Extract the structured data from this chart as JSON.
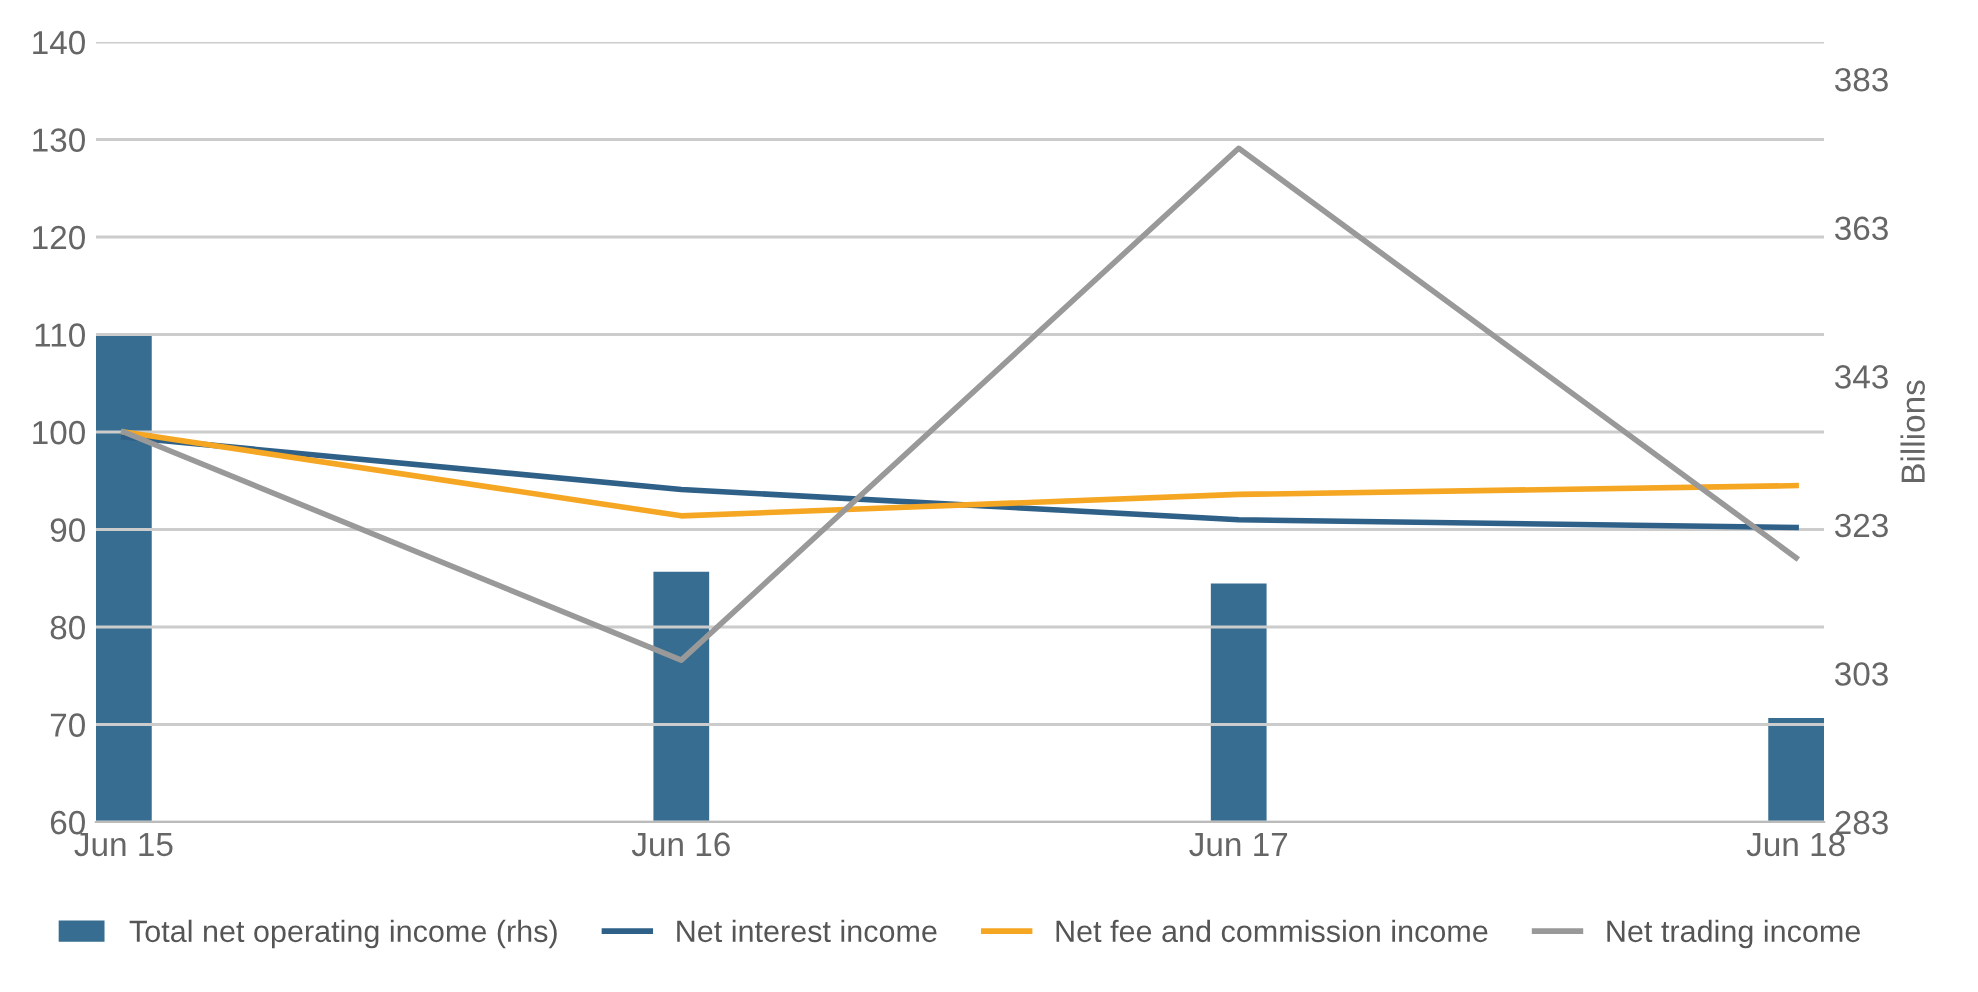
{
  "chart_data": {
    "type": "line",
    "categories": [
      "Jun 15",
      "Jun 16",
      "Jun 17",
      "Jun 18"
    ],
    "series": [
      {
        "name": "Total net operating income (rhs)",
        "type": "bar",
        "axis": "y2",
        "color": "#366d91",
        "values": [
          348.8,
          316.7,
          315.1,
          297
        ]
      },
      {
        "name": "Net interest income",
        "color": "#2e6088",
        "values": [
          99.5,
          94.1,
          91.0,
          90.2
        ]
      },
      {
        "name": "Net fee and commission income",
        "color": "#f5a623",
        "values": [
          100,
          91.4,
          93.6,
          94.5
        ]
      },
      {
        "name": "Net trading income",
        "color": "#999999",
        "values": [
          100,
          76.6,
          129.1,
          87.1
        ]
      }
    ],
    "ylim": [
      60,
      140
    ],
    "yticks": [
      60,
      70,
      80,
      90,
      100,
      110,
      120,
      130,
      140
    ],
    "y2lim": [
      283,
      388
    ],
    "y2ticks": [
      283,
      303,
      323,
      343,
      363,
      383
    ],
    "y2label": "Billions",
    "grid": "y",
    "legend": "bottom",
    "marker": "none",
    "line_style": "solid"
  }
}
